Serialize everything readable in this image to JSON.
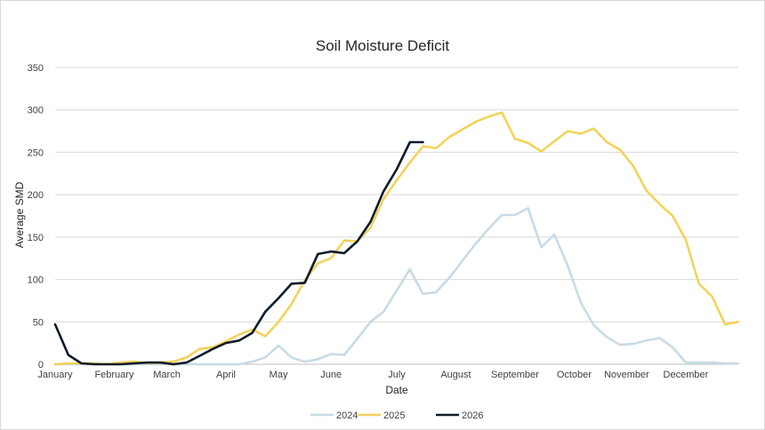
{
  "chart_data": {
    "type": "line",
    "title": "Soil Moisture Deficit",
    "xlabel": "Date",
    "ylabel": "Average SMD",
    "ylim": [
      0,
      350
    ],
    "yticks": [
      0,
      50,
      100,
      150,
      200,
      250,
      300,
      350
    ],
    "x_ticks": [
      {
        "label": "January",
        "x": 0
      },
      {
        "label": "February",
        "x": 4.5
      },
      {
        "label": "March",
        "x": 8.5
      },
      {
        "label": "April",
        "x": 13
      },
      {
        "label": "May",
        "x": 17
      },
      {
        "label": "June",
        "x": 21
      },
      {
        "label": "July",
        "x": 26
      },
      {
        "label": "August",
        "x": 30.5
      },
      {
        "label": "September",
        "x": 35
      },
      {
        "label": "October",
        "x": 39.5
      },
      {
        "label": "November",
        "x": 43.5
      },
      {
        "label": "December",
        "x": 48
      }
    ],
    "xlim": [
      0,
      52
    ],
    "grid": true,
    "legend": "bottom",
    "series": [
      {
        "name": "2024",
        "color": "#c8dbe6",
        "x": [
          0,
          1,
          2,
          3,
          4,
          5,
          6,
          7,
          8,
          9,
          10,
          11,
          12,
          13,
          14,
          15,
          16,
          17,
          18,
          19,
          20,
          21,
          22,
          23,
          24,
          25,
          26,
          27,
          28,
          29,
          30,
          31,
          32,
          33,
          34,
          35,
          36,
          37,
          38,
          39,
          40,
          41,
          42,
          43,
          44,
          45,
          46,
          47,
          48,
          49,
          50,
          51,
          52
        ],
        "values": [
          0,
          0,
          0,
          0,
          0,
          0,
          0,
          0,
          0,
          0,
          0,
          0,
          0,
          0,
          0,
          3,
          8,
          22,
          8,
          3,
          6,
          12,
          11,
          30,
          50,
          62,
          87,
          112,
          83,
          85,
          102,
          122,
          142,
          160,
          176,
          176,
          184,
          138,
          153,
          117,
          73,
          46,
          32,
          23,
          24,
          28,
          31,
          20,
          2,
          2,
          2,
          1,
          1
        ]
      },
      {
        "name": "2025",
        "color": "#f2d35a",
        "x": [
          0,
          1,
          2,
          3,
          4,
          5,
          6,
          7,
          8,
          9,
          10,
          11,
          12,
          13,
          14,
          15,
          16,
          17,
          18,
          19,
          20,
          21,
          22,
          23,
          24,
          25,
          26,
          27,
          28,
          29,
          30,
          31,
          32,
          33,
          34,
          35,
          36,
          37,
          38,
          39,
          40,
          41,
          42,
          43,
          44,
          45,
          46,
          47,
          48,
          49,
          50,
          51,
          52
        ],
        "values": [
          0,
          1,
          1,
          1,
          0,
          2,
          3,
          1,
          2,
          3,
          8,
          18,
          20,
          27,
          35,
          41,
          33,
          50,
          71,
          99,
          119,
          125,
          146,
          145,
          161,
          195,
          217,
          238,
          257,
          255,
          268,
          277,
          286,
          292,
          297,
          266,
          261,
          251,
          263,
          275,
          272,
          278,
          262,
          253,
          234,
          205,
          189,
          175,
          147,
          95,
          80,
          47,
          50
        ]
      },
      {
        "name": "2026",
        "color": "#0f1b2a",
        "x": [
          0,
          1,
          2,
          3,
          4,
          5,
          6,
          7,
          8,
          9,
          10,
          11,
          12,
          13,
          14,
          15,
          16,
          17,
          18,
          19,
          20,
          21,
          22,
          23,
          24,
          25,
          26,
          27,
          28
        ],
        "values": [
          47,
          11,
          1,
          0,
          0,
          0,
          1,
          2,
          2,
          0,
          2,
          10,
          18,
          25,
          28,
          37,
          62,
          78,
          95,
          96,
          130,
          133,
          131,
          145,
          168,
          204,
          230,
          262,
          262
        ]
      }
    ]
  }
}
